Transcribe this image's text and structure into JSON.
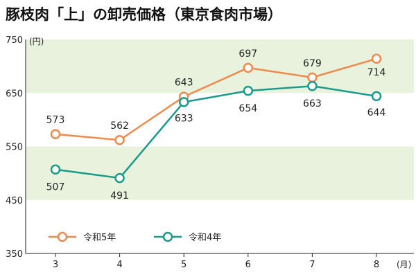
{
  "chart_data": {
    "type": "line",
    "title": "豚枝肉「上」の卸売価格（東京食肉市場）",
    "x_unit": "(月)",
    "y_unit": "(円)",
    "categories": [
      "3",
      "4",
      "5",
      "6",
      "7",
      "8"
    ],
    "ylim": [
      350,
      750
    ],
    "yticks": [
      "350",
      "450",
      "550",
      "650",
      "750"
    ],
    "bands": [
      [
        450,
        550
      ],
      [
        650,
        750
      ]
    ],
    "band_color": "#e9f2dc",
    "grid": false,
    "legend_position": "bottom-left",
    "series": [
      {
        "name": "令和5年",
        "color": "#ef8a4e",
        "values": [
          573,
          562,
          643,
          697,
          679,
          714
        ],
        "labels": [
          "573",
          "562",
          "643",
          "697",
          "679",
          "714"
        ]
      },
      {
        "name": "令和4年",
        "color": "#1a9a8a",
        "values": [
          507,
          491,
          633,
          654,
          663,
          644
        ],
        "labels": [
          "507",
          "491",
          "633",
          "654",
          "663",
          "644"
        ]
      }
    ]
  }
}
